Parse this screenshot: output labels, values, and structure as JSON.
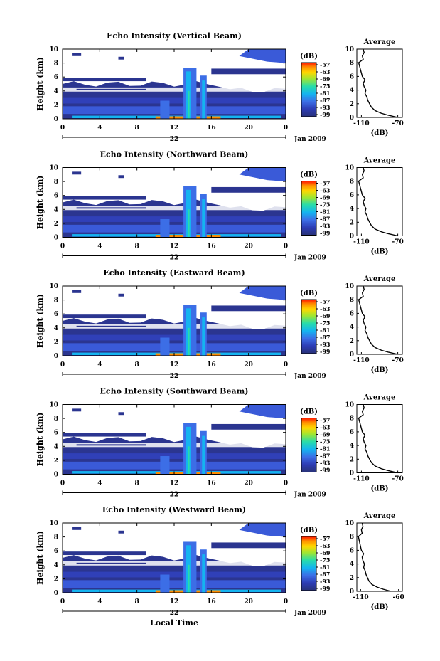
{
  "panels": [
    {
      "title": "Echo Intensity (Vertical Beam)",
      "avg_xticks": [
        "-110",
        "-70"
      ],
      "avg_xrange": [
        -115,
        -65
      ],
      "cloud_right": true
    },
    {
      "title": "Echo Intensity (Northward Beam)",
      "avg_xticks": [
        "-110",
        "-70"
      ],
      "avg_xrange": [
        -115,
        -65
      ],
      "cloud_right": true
    },
    {
      "title": "Echo Intensity (Eastward Beam)",
      "avg_xticks": [
        "-110",
        "-70"
      ],
      "avg_xrange": [
        -115,
        -65
      ],
      "cloud_right": true
    },
    {
      "title": "Echo Intensity (Southward Beam)",
      "avg_xticks": [
        "-110",
        "-70"
      ],
      "avg_xrange": [
        -115,
        -65
      ],
      "cloud_right": true
    },
    {
      "title": "Echo Intensity (Westward Beam)",
      "avg_xticks": [
        "-110",
        "-60"
      ],
      "avg_xrange": [
        -115,
        -55
      ],
      "cloud_right": true
    }
  ],
  "labels": {
    "ylabel": "Height (km)",
    "date_day": "22",
    "date_month": "Jan 2009",
    "colorbar_unit": "(dB)",
    "avg_title": "Average",
    "avg_xlabel": "(dB)",
    "xlabel_bottom": "Local Time"
  },
  "chart_data": {
    "type": "heatmap",
    "x_label": "Local Time",
    "y_label": "Height (km)",
    "x_ticks": [
      "0",
      "4",
      "8",
      "12",
      "16",
      "20",
      "0"
    ],
    "x_range": [
      0,
      24
    ],
    "y_ticks": [
      "0",
      "2",
      "4",
      "6",
      "8",
      "10"
    ],
    "y_range": [
      0,
      10
    ],
    "colorbar": {
      "unit": "(dB)",
      "ticks": [
        "-57",
        "-63",
        "-69",
        "-75",
        "-81",
        "-87",
        "-93",
        "-99"
      ],
      "colors": [
        "#ff1400",
        "#ff8c00",
        "#ffd700",
        "#a0e632",
        "#28dcaa",
        "#14b4f0",
        "#3c6ee6",
        "#2d3cb4",
        "#283278"
      ]
    },
    "average_profile": {
      "height_km": [
        0,
        0.3,
        0.6,
        1,
        1.5,
        2,
        2.5,
        3,
        3.5,
        4,
        4.5,
        5,
        5.5,
        6,
        6.5,
        7,
        7.5,
        8,
        8.5,
        9,
        9.5,
        10
      ],
      "echo_db": [
        -70,
        -80,
        -88,
        -95,
        -99,
        -101,
        -103,
        -104,
        -106,
        -105,
        -107,
        -108,
        -106,
        -109,
        -110,
        -111,
        -112,
        -113,
        -108,
        -109,
        -107,
        -108
      ],
      "y_ticks": [
        "0",
        "2",
        "4",
        "6",
        "8",
        "10"
      ]
    }
  }
}
